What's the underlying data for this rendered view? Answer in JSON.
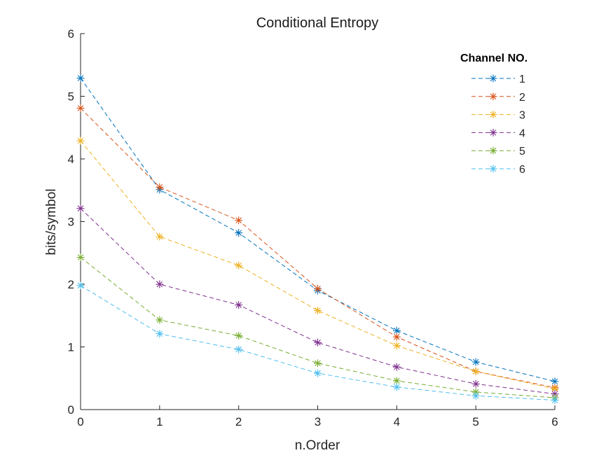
{
  "chart_data": {
    "type": "line",
    "title": "Conditional Entropy",
    "xlabel": "n.Order",
    "ylabel": "bits/symbol",
    "x": [
      0,
      1,
      2,
      3,
      4,
      5,
      6
    ],
    "xlim": [
      0,
      6
    ],
    "ylim": [
      0,
      6
    ],
    "xticks": [
      "0",
      "1",
      "2",
      "3",
      "4",
      "5",
      "6"
    ],
    "yticks": [
      "0",
      "1",
      "2",
      "3",
      "4",
      "5",
      "6"
    ],
    "grid": false,
    "marker": "asterisk",
    "line_style": "dashed",
    "legend": {
      "title": "Channel NO.",
      "placement": "top-right"
    },
    "series": [
      {
        "name": "1",
        "color": "#0072BD",
        "values": [
          5.29,
          3.51,
          2.82,
          1.9,
          1.26,
          0.76,
          0.45
        ]
      },
      {
        "name": "2",
        "color": "#D95319",
        "values": [
          4.81,
          3.55,
          3.02,
          1.93,
          1.16,
          0.61,
          0.35
        ]
      },
      {
        "name": "3",
        "color": "#EDB120",
        "values": [
          4.29,
          2.76,
          2.3,
          1.58,
          1.02,
          0.61,
          0.33
        ]
      },
      {
        "name": "4",
        "color": "#7E2F8E",
        "values": [
          3.21,
          2.0,
          1.67,
          1.07,
          0.68,
          0.41,
          0.25
        ]
      },
      {
        "name": "5",
        "color": "#77AC30",
        "values": [
          2.43,
          1.43,
          1.18,
          0.74,
          0.46,
          0.28,
          0.19
        ]
      },
      {
        "name": "6",
        "color": "#4DBEEE",
        "values": [
          1.98,
          1.21,
          0.96,
          0.58,
          0.36,
          0.22,
          0.15
        ]
      }
    ]
  }
}
